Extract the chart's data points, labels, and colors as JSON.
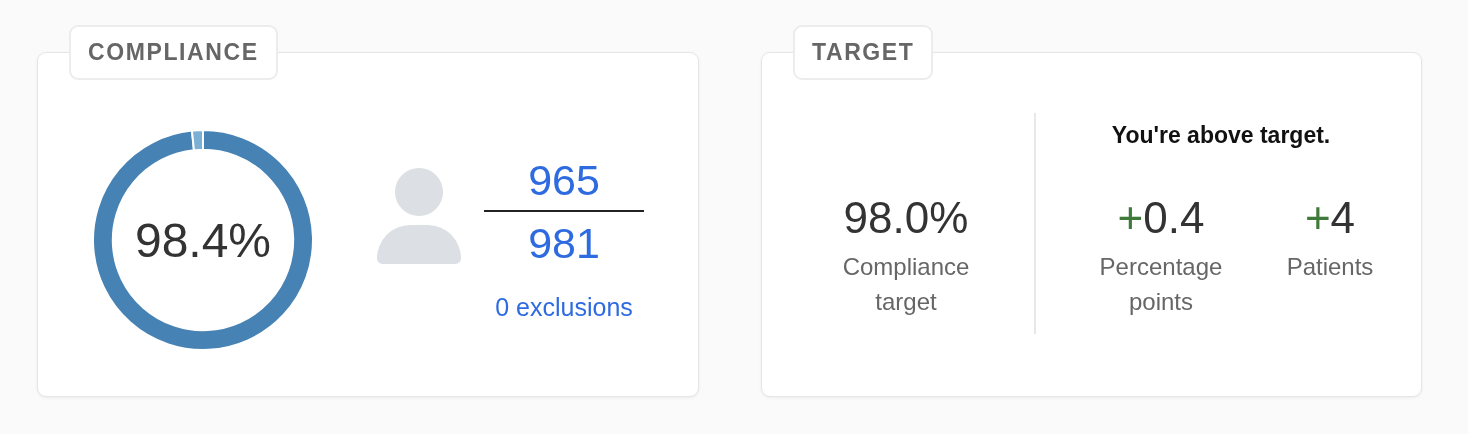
{
  "chart_data": [
    {
      "type": "donut",
      "title": "COMPLIANCE",
      "categories": [
        null,
        null
      ],
      "values": [
        98.4,
        1.6
      ],
      "colors": [
        "#4682b4",
        "#7bafd4"
      ],
      "annotations": [
        "98.4%",
        "965",
        "981",
        "0 exclusions"
      ]
    },
    {
      "type": "other",
      "title": "TARGET",
      "annotations": [
        "98.0%",
        "Compliance target",
        "You're above target.",
        "+0.4",
        "Percentage points",
        "+4",
        "Patients"
      ]
    }
  ]
}
